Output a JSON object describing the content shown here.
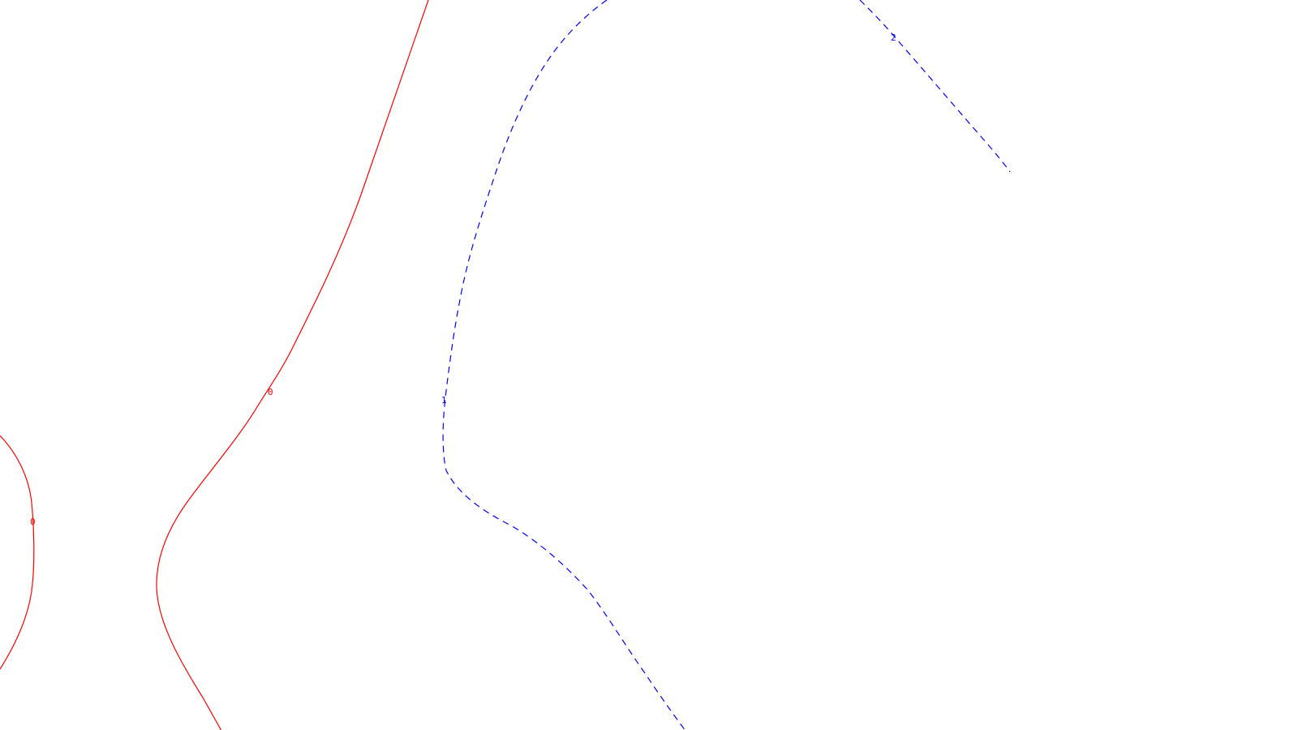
{
  "contours": [
    {
      "id": "contour-0-left",
      "level": "0",
      "label": "0",
      "color": "#ff0000",
      "style": "solid"
    },
    {
      "id": "contour-0-main",
      "level": "0",
      "label": "0",
      "color": "#ff0000",
      "style": "solid"
    },
    {
      "id": "contour-1",
      "level": "1",
      "label": "1",
      "color": "#0000ff",
      "style": "dashed"
    },
    {
      "id": "contour-2",
      "level": "2",
      "label": "2",
      "color": "#0000ff",
      "style": "dashed"
    }
  ],
  "background": "#ffffff"
}
